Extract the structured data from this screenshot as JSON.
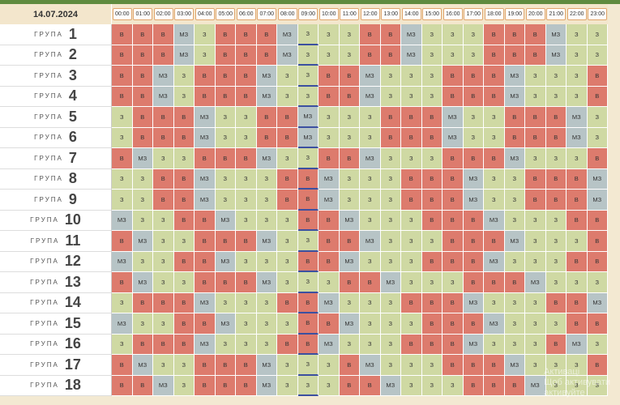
{
  "date": "14.07.2024",
  "group_word": "ГРУПА",
  "hours": [
    "00:00",
    "01:00",
    "02:00",
    "03:00",
    "04:00",
    "05:00",
    "06:00",
    "07:00",
    "08:00",
    "09:00",
    "10:00",
    "11:00",
    "12:00",
    "13:00",
    "14:00",
    "15:00",
    "16:00",
    "17:00",
    "18:00",
    "19:00",
    "20:00",
    "21:00",
    "22:00",
    "23:00"
  ],
  "current_hour_index": 9,
  "status_labels": {
    "B": "В",
    "Z": "З",
    "M": "МЗ"
  },
  "colors": {
    "B": "#dd7b6d",
    "Z": "#cfd9a3",
    "M": "#b7c4c6",
    "now_marker": "#3c50a0"
  },
  "groups": [
    {
      "number": "1",
      "cells": [
        "B",
        "B",
        "B",
        "M",
        "Z",
        "B",
        "B",
        "B",
        "M",
        "Z",
        "Z",
        "Z",
        "B",
        "B",
        "M",
        "Z",
        "Z",
        "Z",
        "B",
        "B",
        "B",
        "M",
        "Z",
        "Z"
      ]
    },
    {
      "number": "2",
      "cells": [
        "B",
        "B",
        "B",
        "M",
        "Z",
        "B",
        "B",
        "B",
        "M",
        "Z",
        "Z",
        "Z",
        "B",
        "B",
        "M",
        "Z",
        "Z",
        "Z",
        "B",
        "B",
        "B",
        "M",
        "Z",
        "Z"
      ]
    },
    {
      "number": "3",
      "cells": [
        "B",
        "B",
        "M",
        "Z",
        "B",
        "B",
        "B",
        "M",
        "Z",
        "Z",
        "B",
        "B",
        "M",
        "Z",
        "Z",
        "Z",
        "B",
        "B",
        "B",
        "M",
        "Z",
        "Z",
        "Z",
        "B"
      ]
    },
    {
      "number": "4",
      "cells": [
        "B",
        "B",
        "M",
        "Z",
        "B",
        "B",
        "B",
        "M",
        "Z",
        "Z",
        "B",
        "B",
        "M",
        "Z",
        "Z",
        "Z",
        "B",
        "B",
        "B",
        "M",
        "Z",
        "Z",
        "Z",
        "B"
      ]
    },
    {
      "number": "5",
      "cells": [
        "Z",
        "B",
        "B",
        "B",
        "M",
        "Z",
        "Z",
        "B",
        "B",
        "M",
        "Z",
        "Z",
        "Z",
        "B",
        "B",
        "B",
        "M",
        "Z",
        "Z",
        "B",
        "B",
        "B",
        "M",
        "Z"
      ]
    },
    {
      "number": "6",
      "cells": [
        "Z",
        "B",
        "B",
        "B",
        "M",
        "Z",
        "Z",
        "B",
        "B",
        "M",
        "Z",
        "Z",
        "Z",
        "B",
        "B",
        "B",
        "M",
        "Z",
        "Z",
        "B",
        "B",
        "B",
        "M",
        "Z"
      ]
    },
    {
      "number": "7",
      "cells": [
        "B",
        "M",
        "Z",
        "Z",
        "B",
        "B",
        "B",
        "M",
        "Z",
        "Z",
        "B",
        "B",
        "M",
        "Z",
        "Z",
        "Z",
        "B",
        "B",
        "B",
        "M",
        "Z",
        "Z",
        "Z",
        "B"
      ]
    },
    {
      "number": "8",
      "cells": [
        "Z",
        "Z",
        "B",
        "B",
        "M",
        "Z",
        "Z",
        "Z",
        "B",
        "B",
        "M",
        "Z",
        "Z",
        "Z",
        "B",
        "B",
        "B",
        "M",
        "Z",
        "Z",
        "B",
        "B",
        "B",
        "M"
      ]
    },
    {
      "number": "9",
      "cells": [
        "Z",
        "Z",
        "B",
        "B",
        "M",
        "Z",
        "Z",
        "Z",
        "B",
        "B",
        "M",
        "Z",
        "Z",
        "Z",
        "B",
        "B",
        "B",
        "M",
        "Z",
        "Z",
        "B",
        "B",
        "B",
        "M"
      ]
    },
    {
      "number": "10",
      "cells": [
        "M",
        "Z",
        "Z",
        "B",
        "B",
        "M",
        "Z",
        "Z",
        "Z",
        "B",
        "B",
        "M",
        "Z",
        "Z",
        "Z",
        "B",
        "B",
        "B",
        "M",
        "Z",
        "Z",
        "Z",
        "B",
        "B"
      ]
    },
    {
      "number": "11",
      "cells": [
        "B",
        "M",
        "Z",
        "Z",
        "B",
        "B",
        "B",
        "M",
        "Z",
        "Z",
        "B",
        "B",
        "M",
        "Z",
        "Z",
        "Z",
        "B",
        "B",
        "B",
        "M",
        "Z",
        "Z",
        "Z",
        "B"
      ]
    },
    {
      "number": "12",
      "cells": [
        "M",
        "Z",
        "Z",
        "B",
        "B",
        "M",
        "Z",
        "Z",
        "Z",
        "B",
        "B",
        "M",
        "Z",
        "Z",
        "Z",
        "B",
        "B",
        "B",
        "M",
        "Z",
        "Z",
        "Z",
        "B",
        "B"
      ]
    },
    {
      "number": "13",
      "cells": [
        "B",
        "M",
        "Z",
        "Z",
        "B",
        "B",
        "B",
        "M",
        "Z",
        "Z",
        "Z",
        "B",
        "B",
        "M",
        "Z",
        "Z",
        "Z",
        "B",
        "B",
        "B",
        "M",
        "Z",
        "Z",
        "Z"
      ]
    },
    {
      "number": "14",
      "cells": [
        "Z",
        "B",
        "B",
        "B",
        "M",
        "Z",
        "Z",
        "Z",
        "B",
        "B",
        "M",
        "Z",
        "Z",
        "Z",
        "B",
        "B",
        "B",
        "M",
        "Z",
        "Z",
        "Z",
        "B",
        "B",
        "M"
      ]
    },
    {
      "number": "15",
      "cells": [
        "M",
        "Z",
        "Z",
        "B",
        "B",
        "M",
        "Z",
        "Z",
        "Z",
        "B",
        "B",
        "M",
        "Z",
        "Z",
        "Z",
        "B",
        "B",
        "B",
        "M",
        "Z",
        "Z",
        "Z",
        "B",
        "B"
      ]
    },
    {
      "number": "16",
      "cells": [
        "Z",
        "B",
        "B",
        "B",
        "M",
        "Z",
        "Z",
        "Z",
        "B",
        "B",
        "M",
        "Z",
        "Z",
        "Z",
        "B",
        "B",
        "B",
        "M",
        "Z",
        "Z",
        "Z",
        "B",
        "M",
        "Z"
      ]
    },
    {
      "number": "17",
      "cells": [
        "B",
        "M",
        "Z",
        "Z",
        "B",
        "B",
        "B",
        "M",
        "Z",
        "Z",
        "Z",
        "B",
        "M",
        "Z",
        "Z",
        "Z",
        "B",
        "B",
        "B",
        "M",
        "Z",
        "Z",
        "Z",
        "B"
      ]
    },
    {
      "number": "18",
      "cells": [
        "B",
        "B",
        "M",
        "Z",
        "B",
        "B",
        "B",
        "M",
        "Z",
        "Z",
        "Z",
        "B",
        "B",
        "M",
        "Z",
        "Z",
        "Z",
        "B",
        "B",
        "B",
        "M",
        "Z",
        "Z",
        "Z"
      ]
    }
  ],
  "watermark": {
    "line1": "Активаці",
    "line2": "Щоб активувати",
    "line3": "активуйте"
  }
}
